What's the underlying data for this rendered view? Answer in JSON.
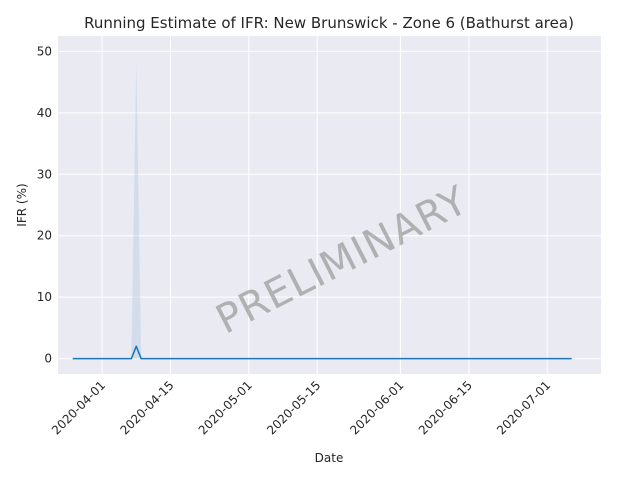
{
  "chart_data": {
    "type": "line",
    "title": "Running Estimate of IFR: New Brunswick - Zone 6 (Bathurst area)",
    "xlabel": "Date",
    "ylabel": "IFR (%)",
    "watermark": "PRELIMINARY",
    "xlim": [
      "2020-03-23",
      "2020-07-12"
    ],
    "ylim": [
      -2.5,
      52.5
    ],
    "xticks": [
      "2020-04-01",
      "2020-04-15",
      "2020-05-01",
      "2020-05-15",
      "2020-06-01",
      "2020-06-15",
      "2020-07-01"
    ],
    "yticks": [
      0,
      10,
      20,
      30,
      40,
      50
    ],
    "grid": true,
    "line_color": "#1f77b4",
    "band_color": "#a6c4e0",
    "series": [
      {
        "x": [
          "2020-03-26",
          "2020-04-07",
          "2020-04-08",
          "2020-04-09",
          "2020-07-06"
        ],
        "values": [
          0,
          0,
          2.0,
          0,
          0
        ],
        "lower": [
          0,
          0,
          0,
          0,
          0
        ],
        "upper": [
          0,
          0,
          48.5,
          0,
          0
        ]
      }
    ]
  }
}
